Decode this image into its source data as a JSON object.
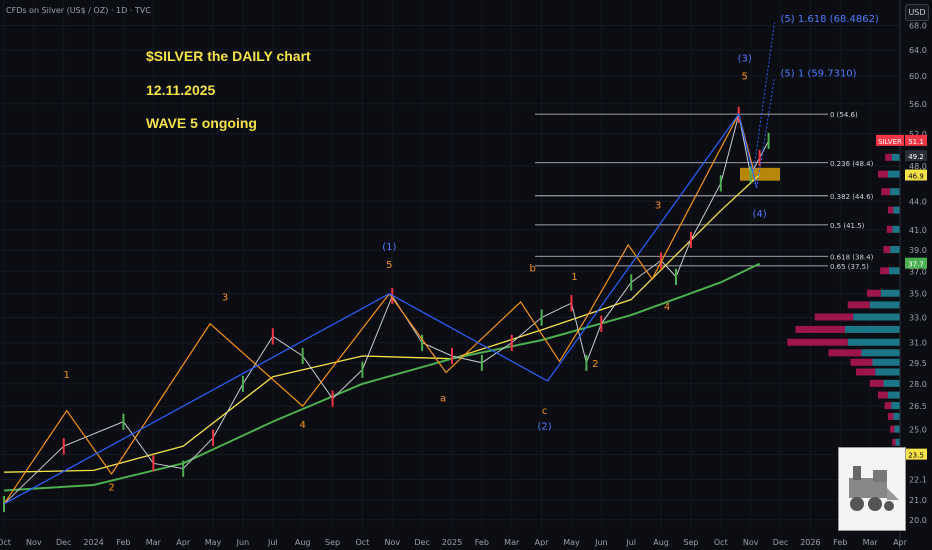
{
  "legend": "CFDs on Silver (US$ / OZ) · 1D · TVC",
  "currency_button": "USD",
  "notes": [
    "$SILVER   the DAILY chart",
    "12.11.2025",
    "WAVE 5 ongoing"
  ],
  "colors": {
    "background": "#0b0d12",
    "orange": "#f7931a",
    "blue": "#2962ff",
    "yellow": "#f5e14a",
    "green": "#4caf50",
    "text": "#9aa0ab",
    "price_red": "#f23645",
    "price_green": "#4caf50",
    "fib_box": "#b8860b"
  },
  "chart_data": {
    "type": "line",
    "title": "",
    "y_axis": {
      "labels": [
        "68.0",
        "64.0",
        "60.0",
        "56.0",
        "52.0",
        "48.0",
        "44.0",
        "41.0",
        "39.0",
        "37.0",
        "35.0",
        "33.0",
        "31.0",
        "29.5",
        "28.0",
        "26.5",
        "25.0",
        "23.5",
        "22.1",
        "21.0",
        "20.0"
      ],
      "scale": "log",
      "range": [
        19.5,
        71
      ]
    },
    "x_axis": {
      "labels": [
        "Oct",
        "Nov",
        "Dec",
        "2024",
        "Feb",
        "Mar",
        "Apr",
        "May",
        "Jun",
        "Jul",
        "Aug",
        "Sep",
        "Oct",
        "Nov",
        "Dec",
        "2025",
        "Feb",
        "Mar",
        "Apr",
        "May",
        "Jun",
        "Jul",
        "Aug",
        "Sep",
        "Oct",
        "Nov",
        "Dec",
        "2026",
        "Feb",
        "Mar",
        "Apr"
      ]
    },
    "price_series": {
      "name": "SILVER",
      "x": [
        0,
        2,
        4,
        5,
        6,
        7,
        8,
        9,
        10,
        11,
        12,
        13,
        14,
        15,
        16,
        17,
        18,
        19,
        19.5,
        20,
        21,
        22,
        22.5,
        23,
        24,
        24.6,
        25,
        25.3,
        25.6
      ],
      "y": [
        20.8,
        24,
        25.5,
        23,
        22.7,
        24.5,
        28,
        31.5,
        30,
        27,
        29,
        34.8,
        31,
        30,
        29.5,
        31,
        33,
        34.2,
        29.5,
        32.5,
        36,
        38,
        36.5,
        40,
        46,
        54.5,
        47,
        49,
        51.1
      ]
    },
    "wave_lines": {
      "orange": [
        [
          0,
          20.8
        ],
        [
          2.1,
          26.2
        ],
        [
          3.6,
          22.4
        ],
        [
          6.9,
          32.5
        ],
        [
          10,
          26.5
        ],
        [
          12.9,
          35
        ],
        [
          14.8,
          28.8
        ],
        [
          17.3,
          34.3
        ],
        [
          18.6,
          29.6
        ],
        [
          19.5,
          33
        ],
        [
          20.9,
          39.5
        ],
        [
          21.7,
          36.3
        ],
        [
          24.6,
          54.6
        ],
        [
          25.1,
          47.5
        ],
        [
          25.8,
          68.4862
        ]
      ],
      "blue": [
        [
          0,
          20.8
        ],
        [
          12.9,
          35
        ],
        [
          18.2,
          28.2
        ],
        [
          24.6,
          54.6
        ],
        [
          25.2,
          45.5
        ],
        [
          25.8,
          59.731
        ]
      ]
    },
    "moving_averages": [
      {
        "name": "MA50",
        "color": "#f5e14a",
        "x": [
          0,
          3,
          6,
          9,
          12,
          15,
          18,
          21,
          24,
          25.3
        ],
        "y": [
          22.5,
          22.6,
          24,
          28.5,
          30,
          29.8,
          32,
          34.5,
          43,
          47
        ]
      },
      {
        "name": "MA200",
        "color": "#4caf50",
        "x": [
          0,
          3,
          6,
          9,
          12,
          15,
          18,
          21,
          24,
          25.3
        ],
        "y": [
          21.5,
          21.8,
          23,
          25.5,
          28,
          29.8,
          31.2,
          33.2,
          36,
          37.7
        ]
      }
    ],
    "wave_labels": [
      {
        "text": "1",
        "x": 2.1,
        "y": 28.4,
        "color": "orange"
      },
      {
        "text": "2",
        "x": 3.6,
        "y": 21.5,
        "color": "orange"
      },
      {
        "text": "3",
        "x": 7.4,
        "y": 34.4,
        "color": "orange"
      },
      {
        "text": "4",
        "x": 10,
        "y": 25.1,
        "color": "orange"
      },
      {
        "text": "(1)",
        "x": 12.9,
        "y": 39,
        "color": "blue"
      },
      {
        "text": "5",
        "x": 12.9,
        "y": 37.3,
        "color": "orange"
      },
      {
        "text": "a",
        "x": 14.7,
        "y": 26.8,
        "color": "orange"
      },
      {
        "text": "b",
        "x": 17.7,
        "y": 37,
        "color": "orange"
      },
      {
        "text": "c",
        "x": 18.1,
        "y": 26,
        "color": "orange"
      },
      {
        "text": "(2)",
        "x": 18.1,
        "y": 25,
        "color": "blue"
      },
      {
        "text": "1",
        "x": 19.1,
        "y": 36.2,
        "color": "orange"
      },
      {
        "text": "2",
        "x": 19.8,
        "y": 29.2,
        "color": "orange"
      },
      {
        "text": "3",
        "x": 21.9,
        "y": 43.2,
        "color": "orange"
      },
      {
        "text": "4",
        "x": 22.2,
        "y": 33.6,
        "color": "orange"
      },
      {
        "text": "(3)",
        "x": 24.8,
        "y": 62.2,
        "color": "blue"
      },
      {
        "text": "5",
        "x": 24.8,
        "y": 59.5,
        "color": "orange"
      },
      {
        "text": "(4)",
        "x": 25.3,
        "y": 42.3,
        "color": "blue"
      },
      {
        "text": "(5) 1.618 (68.4862)",
        "x": 26,
        "y": 68.6,
        "color": "blue"
      },
      {
        "text": "(5) 1 (59.7310)",
        "x": 26,
        "y": 59.9,
        "color": "blue"
      }
    ],
    "fib_levels": [
      {
        "label": "0 (54.6)",
        "value": 54.6
      },
      {
        "label": "0.236 (48.4)",
        "value": 48.4
      },
      {
        "label": "0.382 (44.6)",
        "value": 44.6
      },
      {
        "label": "0.5 (41.5)",
        "value": 41.5
      },
      {
        "label": "0.618 (38.4)",
        "value": 38.4
      },
      {
        "label": "0.65 (37.5)",
        "value": 37.5
      }
    ],
    "price_tags": [
      {
        "label": "SILVER",
        "value": 51.1,
        "color": "#f23645"
      },
      {
        "label": "",
        "value": 49.2,
        "color": "#2a2e39"
      },
      {
        "label": "",
        "value": 46.9,
        "color": "#f5e14a"
      },
      {
        "label": "",
        "value": 37.7,
        "color": "#4caf50"
      },
      {
        "label": "",
        "value": 23.5,
        "color": "#f5e14a"
      }
    ],
    "volume_profile": {
      "levels": [
        51,
        49,
        47,
        45,
        43,
        41,
        39,
        37,
        35,
        34,
        33,
        32,
        31,
        30.2,
        29.5,
        28.8,
        28,
        27.2,
        26.5,
        25.8,
        25,
        24.2,
        23.5
      ],
      "teal": [
        10,
        15,
        22,
        18,
        12,
        14,
        18,
        20,
        35,
        55,
        85,
        100,
        95,
        70,
        50,
        45,
        30,
        22,
        16,
        12,
        10,
        8,
        6
      ],
      "red": [
        8,
        12,
        18,
        16,
        10,
        10,
        12,
        16,
        25,
        40,
        70,
        90,
        110,
        60,
        40,
        35,
        25,
        18,
        12,
        10,
        8,
        6,
        5
      ]
    }
  }
}
